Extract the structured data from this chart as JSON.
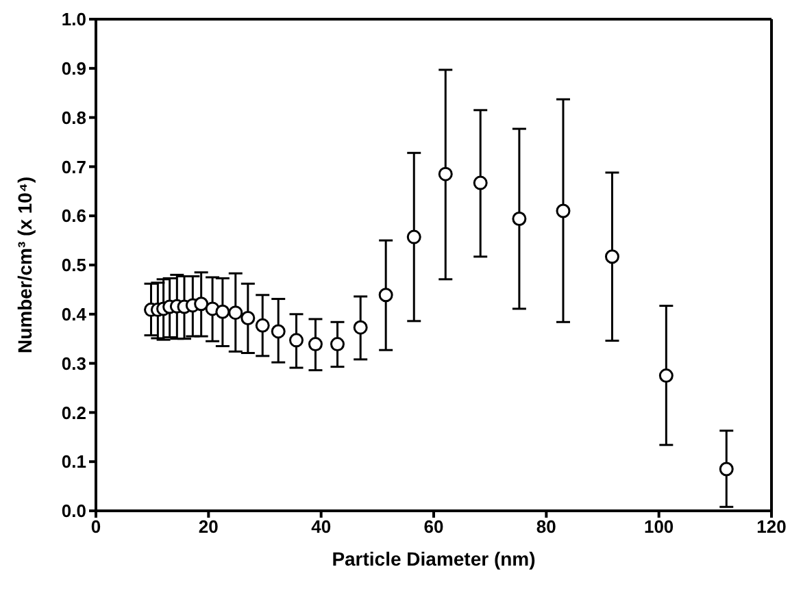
{
  "chart_data": {
    "type": "scatter",
    "xlabel": "Particle Diameter (nm)",
    "ylabel": "Number/cm³ (x 10⁴)",
    "x": [
      9.8,
      11.0,
      12.0,
      13.1,
      14.4,
      15.7,
      17.2,
      18.7,
      20.7,
      22.5,
      24.8,
      27.0,
      29.6,
      32.4,
      35.6,
      39.0,
      42.9,
      47.0,
      51.5,
      56.5,
      62.1,
      68.3,
      75.2,
      83.0,
      91.7,
      101.3,
      112.0
    ],
    "series": [
      {
        "color": "#000000",
        "values": [
          0.409,
          0.409,
          0.411,
          0.415,
          0.416,
          0.415,
          0.418,
          0.421,
          0.411,
          0.405,
          0.403,
          0.392,
          0.377,
          0.365,
          0.347,
          0.339,
          0.339,
          0.373,
          0.439,
          0.557,
          0.685,
          0.667,
          0.594,
          0.61,
          0.517,
          0.275,
          0.085
        ],
        "errors": [
          [
            0.357,
            0.462
          ],
          [
            0.351,
            0.464
          ],
          [
            0.348,
            0.471
          ],
          [
            0.353,
            0.473
          ],
          [
            0.35,
            0.48
          ],
          [
            0.35,
            0.477
          ],
          [
            0.355,
            0.477
          ],
          [
            0.355,
            0.485
          ],
          [
            0.345,
            0.475
          ],
          [
            0.335,
            0.473
          ],
          [
            0.324,
            0.483
          ],
          [
            0.321,
            0.462
          ],
          [
            0.315,
            0.439
          ],
          [
            0.302,
            0.431
          ],
          [
            0.291,
            0.4
          ],
          [
            0.286,
            0.39
          ],
          [
            0.293,
            0.384
          ],
          [
            0.308,
            0.436
          ],
          [
            0.327,
            0.55
          ],
          [
            0.386,
            0.728
          ],
          [
            0.471,
            0.897
          ],
          [
            0.517,
            0.815
          ],
          [
            0.411,
            0.777
          ],
          [
            0.384,
            0.837
          ],
          [
            0.346,
            0.688
          ],
          [
            0.134,
            0.417
          ],
          [
            0.008,
            0.163
          ]
        ]
      }
    ],
    "xlim": [
      0,
      120
    ],
    "xticks": [
      0,
      20,
      40,
      60,
      80,
      100,
      120
    ],
    "ylim": [
      0,
      1
    ],
    "yticks": [
      {
        "value": 0,
        "label": "0.0"
      },
      0.1,
      0.2,
      0.3,
      0.4,
      0.5,
      0.6,
      0.7,
      0.8,
      0.9,
      {
        "value": 1,
        "label": "1.0"
      }
    ],
    "marker": "circle"
  }
}
